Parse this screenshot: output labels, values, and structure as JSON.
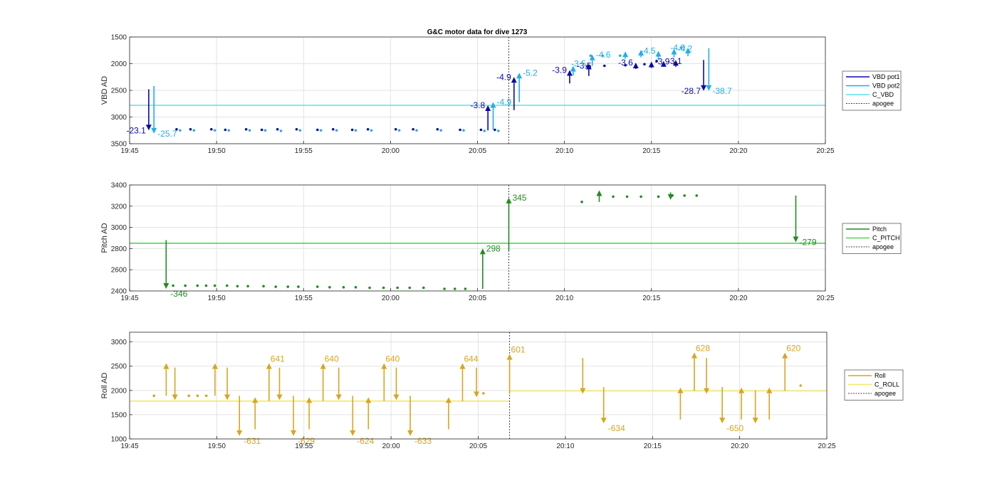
{
  "figure_title": "G&C motor data for dive 1273",
  "colors": {
    "pot1": "#0a0aa8",
    "pot2": "#22aee8",
    "c_vbd": "#5fe0e8",
    "pitch": "#228b22",
    "c_pitch": "#4fd84f",
    "roll": "#d9a520",
    "c_roll": "#f2e868",
    "apogee": "#444444"
  },
  "chart_data": [
    {
      "type": "scatter",
      "ylabel": "VBD AD",
      "xlim": [
        0,
        40
      ],
      "ylim": [
        1500,
        3500
      ],
      "y_reversed": true,
      "grid": true,
      "xticks": [
        "19:45",
        "19:50",
        "19:55",
        "20:00",
        "20:05",
        "20:10",
        "20:15",
        "20:20",
        "20:25"
      ],
      "yticks": [
        "1500",
        "2000",
        "2500",
        "3000",
        "3500"
      ],
      "apogee_x": 21.8,
      "ref_lines": [
        {
          "name": "C_VBD",
          "color_key": "c_vbd",
          "segments": [
            [
              0,
              40,
              2780
            ]
          ]
        }
      ],
      "legend": [
        {
          "name": "VBD pot1",
          "color_key": "pot1",
          "style": "solid"
        },
        {
          "name": "VBD pot2",
          "color_key": "pot2",
          "style": "solid"
        },
        {
          "name": "C_VBD",
          "color_key": "c_vbd",
          "style": "solid"
        },
        {
          "name": "apogee",
          "color_key": "apogee",
          "style": "dotted"
        }
      ],
      "legend_position": "right",
      "dot_series": [
        {
          "color_key": "pot1",
          "x": [
            2.7,
            3.5,
            4.7,
            5.5,
            6.7,
            7.6,
            8.5,
            9.6,
            10.8,
            11.7,
            12.8,
            13.7,
            15.3,
            16.3,
            17.7,
            19.0,
            20.2,
            21.0,
            26.3,
            27.3,
            28.5,
            29.6,
            30.3
          ],
          "y": [
            3230,
            3230,
            3230,
            3240,
            3230,
            3240,
            3230,
            3230,
            3240,
            3230,
            3240,
            3230,
            3230,
            3230,
            3230,
            3240,
            3240,
            3240,
            2050,
            2040,
            2030,
            2010,
            1950
          ]
        },
        {
          "color_key": "pot2",
          "x": [
            2.9,
            3.7,
            4.9,
            5.7,
            6.9,
            7.8,
            8.7,
            9.8,
            11.0,
            11.9,
            13.0,
            13.9,
            15.5,
            16.5,
            17.9,
            19.2,
            20.4,
            21.2,
            26.5,
            27.2,
            28.2,
            31.7
          ],
          "y": [
            3250,
            3250,
            3250,
            3250,
            3250,
            3250,
            3260,
            3250,
            3250,
            3250,
            3250,
            3250,
            3250,
            3250,
            3250,
            3250,
            3260,
            3260,
            1850,
            1850,
            1850,
            1700
          ]
        }
      ],
      "arrows": [
        {
          "x": 1.1,
          "from": 2480,
          "to": 3250,
          "color_key": "pot1",
          "label": "-23.1",
          "label_color_key": "pot1",
          "label_side": "left"
        },
        {
          "x": 1.4,
          "from": 2420,
          "to": 3310,
          "color_key": "pot2",
          "label": "-25.7",
          "label_color_key": "pot2",
          "label_side": "right"
        },
        {
          "x": 20.6,
          "from": 3250,
          "to": 2780,
          "color_key": "pot1",
          "label": "-3.8",
          "label_color_key": "pot1",
          "label_side": "left"
        },
        {
          "x": 20.9,
          "from": 3240,
          "to": 2720,
          "color_key": "pot2",
          "label": "-4.9",
          "label_color_key": "pot2",
          "label_side": "right"
        },
        {
          "x": 22.1,
          "from": 2870,
          "to": 2250,
          "color_key": "pot1",
          "label": "-4.9",
          "label_color_key": "pot1",
          "label_side": "left"
        },
        {
          "x": 22.4,
          "from": 2720,
          "to": 2170,
          "color_key": "pot2",
          "label": "-5.2",
          "label_color_key": "pot2",
          "label_side": "right"
        },
        {
          "x": 25.3,
          "from": 2370,
          "to": 2120,
          "color_key": "pot1",
          "label": "-3.9",
          "label_color_key": "pot1",
          "label_side": "left"
        },
        {
          "x": 25.5,
          "from": 2220,
          "to": 2040,
          "color_key": "pot2",
          "label": "-3.5",
          "label_color_key": "pot1",
          "label_side": "right"
        },
        {
          "x": 26.4,
          "from": 2230,
          "to": 2000,
          "color_key": "pot1",
          "label": "-3.5",
          "label_color_key": "pot2",
          "label_side": "left"
        },
        {
          "x": 26.6,
          "from": 2040,
          "to": 1830,
          "color_key": "pot2",
          "label": "-4.6",
          "label_color_key": "pot2",
          "label_side": "right"
        },
        {
          "x": 29.1,
          "from": 2100,
          "to": 1980,
          "color_key": "pot1",
          "label": "-3.6",
          "label_color_key": "pot1",
          "label_side": "left"
        },
        {
          "x": 30.0,
          "from": 2080,
          "to": 1960,
          "color_key": "pot1",
          "label": "-3.9",
          "label_color_key": "pot1",
          "label_side": "right"
        },
        {
          "x": 30.7,
          "from": 2060,
          "to": 1950,
          "color_key": "pot1",
          "label": "-3.1",
          "label_color_key": "pot1",
          "label_side": "right"
        },
        {
          "x": 31.4,
          "from": 2060,
          "to": 1930,
          "color_key": "pot1",
          "label": "",
          "label_color_key": "pot1",
          "label_side": "right"
        },
        {
          "x": 30.4,
          "from": 1920,
          "to": 1760,
          "color_key": "pot2",
          "label": "-4.5",
          "label_color_key": "pot2",
          "label_side": "left"
        },
        {
          "x": 31.3,
          "from": 1880,
          "to": 1720,
          "color_key": "pot2",
          "label": "-4.2",
          "label_color_key": "pot2",
          "label_side": "right"
        },
        {
          "x": 32.1,
          "from": 1860,
          "to": 1700,
          "color_key": "pot2",
          "label": "-4.0",
          "label_color_key": "pot2",
          "label_side": "left"
        },
        {
          "x": 29.4,
          "from": 1880,
          "to": 1740,
          "color_key": "pot2",
          "label": "",
          "label_color_key": "pot2",
          "label_side": "right"
        },
        {
          "x": 28.5,
          "from": 1910,
          "to": 1770,
          "color_key": "pot2",
          "label": "",
          "label_color_key": "pot2",
          "label_side": "right"
        },
        {
          "x": 33.0,
          "from": 1930,
          "to": 2510,
          "color_key": "pot1",
          "label": "-28.7",
          "label_color_key": "pot1",
          "label_side": "left"
        },
        {
          "x": 33.3,
          "from": 1710,
          "to": 2510,
          "color_key": "pot2",
          "label": "-38.7",
          "label_color_key": "pot2",
          "label_side": "right"
        }
      ]
    },
    {
      "type": "scatter",
      "ylabel": "Pitch AD",
      "xlim": [
        0,
        40
      ],
      "ylim": [
        2400,
        3400
      ],
      "y_reversed": false,
      "grid": true,
      "xticks": [
        "19:45",
        "19:50",
        "19:55",
        "20:00",
        "20:05",
        "20:10",
        "20:15",
        "20:20",
        "20:25"
      ],
      "yticks": [
        "2400",
        "2600",
        "2800",
        "3000",
        "3200",
        "3400"
      ],
      "apogee_x": 21.8,
      "ref_lines": [
        {
          "name": "C_PITCH",
          "color_key": "c_pitch",
          "segments": [
            [
              0,
              40,
              2850
            ]
          ]
        }
      ],
      "legend": [
        {
          "name": "Pitch",
          "color_key": "pitch",
          "style": "solid"
        },
        {
          "name": "C_PITCH",
          "color_key": "c_pitch",
          "style": "solid"
        },
        {
          "name": "apogee",
          "color_key": "apogee",
          "style": "dotted"
        }
      ],
      "legend_position": "right",
      "dot_series": [
        {
          "color_key": "pitch",
          "x": [
            2.5,
            3.2,
            3.9,
            4.4,
            4.9,
            5.6,
            6.2,
            6.8,
            7.7,
            8.4,
            9.1,
            9.7,
            10.8,
            11.5,
            12.3,
            13.0,
            13.8,
            14.6,
            15.4,
            16.1,
            16.9,
            18.1,
            18.7,
            19.3,
            26.0,
            27.8,
            28.6,
            29.4,
            30.4,
            31.2,
            31.9,
            32.6
          ],
          "y": [
            2450,
            2450,
            2450,
            2450,
            2450,
            2450,
            2445,
            2445,
            2445,
            2440,
            2440,
            2440,
            2440,
            2435,
            2435,
            2435,
            2430,
            2430,
            2430,
            2430,
            2430,
            2420,
            2420,
            2420,
            3240,
            3290,
            3290,
            3290,
            3290,
            3300,
            3300,
            3300
          ]
        }
      ],
      "arrows": [
        {
          "x": 2.1,
          "from": 2880,
          "to": 2420,
          "color_key": "pitch",
          "label": "-346",
          "label_color_key": "pitch",
          "label_side": "right-below"
        },
        {
          "x": 20.3,
          "from": 2420,
          "to": 2800,
          "color_key": "pitch",
          "label": "298",
          "label_color_key": "pitch",
          "label_side": "right"
        },
        {
          "x": 21.8,
          "from": 2780,
          "to": 3280,
          "color_key": "pitch",
          "label": "345",
          "label_color_key": "pitch",
          "label_side": "right"
        },
        {
          "x": 27.0,
          "from": 3240,
          "to": 3350,
          "color_key": "pitch",
          "label": "",
          "label_color_key": "pitch",
          "label_side": "right"
        },
        {
          "x": 31.1,
          "from": 3330,
          "to": 3260,
          "color_key": "pitch",
          "label": "",
          "label_color_key": "pitch",
          "label_side": "right"
        },
        {
          "x": 38.3,
          "from": 3300,
          "to": 2860,
          "color_key": "pitch",
          "label": "-279",
          "label_color_key": "pitch",
          "label_side": "right"
        }
      ]
    },
    {
      "type": "scatter",
      "ylabel": "Roll AD",
      "xlim": [
        0,
        40
      ],
      "ylim": [
        1000,
        3200
      ],
      "y_reversed": false,
      "grid": true,
      "xticks": [
        "19:45",
        "19:50",
        "19:55",
        "20:00",
        "20:05",
        "20:10",
        "20:15",
        "20:20",
        "20:25"
      ],
      "yticks": [
        "1000",
        "1500",
        "2000",
        "2500",
        "3000"
      ],
      "apogee_x": 21.8,
      "ref_lines": [
        {
          "name": "C_ROLL",
          "color_key": "c_roll",
          "segments": [
            [
              0,
              21.8,
              1780
            ],
            [
              21.8,
              40,
              1990
            ]
          ]
        }
      ],
      "legend": [
        {
          "name": "Roll",
          "color_key": "roll",
          "style": "solid"
        },
        {
          "name": "C_ROLL",
          "color_key": "c_roll",
          "style": "solid"
        },
        {
          "name": "apogee",
          "color_key": "apogee",
          "style": "dotted"
        }
      ],
      "legend_position": "right",
      "dot_series": [
        {
          "color_key": "roll",
          "x": [
            1.4,
            3.4,
            3.9,
            4.4,
            20.3,
            38.5
          ],
          "y": [
            1890,
            1890,
            1890,
            1890,
            1940,
            2100
          ]
        }
      ],
      "arrows": [
        {
          "x": 2.1,
          "from": 1890,
          "to": 2560,
          "color_key": "roll",
          "label": "",
          "label_color_key": "roll",
          "label_side": "right"
        },
        {
          "x": 2.6,
          "from": 2470,
          "to": 1800,
          "color_key": "roll",
          "label": "",
          "label_color_key": "roll",
          "label_side": "right"
        },
        {
          "x": 4.9,
          "from": 1890,
          "to": 2560,
          "color_key": "roll",
          "label": "",
          "label_color_key": "roll",
          "label_side": "right"
        },
        {
          "x": 5.6,
          "from": 2470,
          "to": 1800,
          "color_key": "roll",
          "label": "",
          "label_color_key": "roll",
          "label_side": "right"
        },
        {
          "x": 6.3,
          "from": 1890,
          "to": 1060,
          "color_key": "roll",
          "label": "-631",
          "label_color_key": "roll",
          "label_side": "right-below"
        },
        {
          "x": 7.2,
          "from": 1200,
          "to": 1860,
          "color_key": "roll",
          "label": "",
          "label_color_key": "roll",
          "label_side": "right"
        },
        {
          "x": 8.0,
          "from": 1780,
          "to": 2560,
          "color_key": "roll",
          "label": "641",
          "label_color_key": "roll",
          "label_side": "right-above"
        },
        {
          "x": 8.6,
          "from": 2470,
          "to": 1800,
          "color_key": "roll",
          "label": "",
          "label_color_key": "roll",
          "label_side": "right"
        },
        {
          "x": 9.4,
          "from": 1890,
          "to": 1060,
          "color_key": "roll",
          "label": "-629",
          "label_color_key": "roll",
          "label_side": "right-below"
        },
        {
          "x": 10.3,
          "from": 1200,
          "to": 1860,
          "color_key": "roll",
          "label": "",
          "label_color_key": "roll",
          "label_side": "right"
        },
        {
          "x": 11.1,
          "from": 1780,
          "to": 2560,
          "color_key": "roll",
          "label": "640",
          "label_color_key": "roll",
          "label_side": "right-above"
        },
        {
          "x": 12.0,
          "from": 2470,
          "to": 1800,
          "color_key": "roll",
          "label": "",
          "label_color_key": "roll",
          "label_side": "right"
        },
        {
          "x": 12.8,
          "from": 1890,
          "to": 1060,
          "color_key": "roll",
          "label": "-624",
          "label_color_key": "roll",
          "label_side": "right-below"
        },
        {
          "x": 13.7,
          "from": 1200,
          "to": 1860,
          "color_key": "roll",
          "label": "",
          "label_color_key": "roll",
          "label_side": "right"
        },
        {
          "x": 14.6,
          "from": 1780,
          "to": 2560,
          "color_key": "roll",
          "label": "640",
          "label_color_key": "roll",
          "label_side": "right-above"
        },
        {
          "x": 15.3,
          "from": 2470,
          "to": 1800,
          "color_key": "roll",
          "label": "",
          "label_color_key": "roll",
          "label_side": "right"
        },
        {
          "x": 16.1,
          "from": 1890,
          "to": 1060,
          "color_key": "roll",
          "label": "-633",
          "label_color_key": "roll",
          "label_side": "right-below"
        },
        {
          "x": 18.3,
          "from": 1200,
          "to": 1860,
          "color_key": "roll",
          "label": "",
          "label_color_key": "roll",
          "label_side": "right"
        },
        {
          "x": 19.1,
          "from": 1780,
          "to": 2560,
          "color_key": "roll",
          "label": "644",
          "label_color_key": "roll",
          "label_side": "right-above"
        },
        {
          "x": 19.9,
          "from": 2470,
          "to": 1860,
          "color_key": "roll",
          "label": "",
          "label_color_key": "roll",
          "label_side": "right"
        },
        {
          "x": 21.8,
          "from": 1930,
          "to": 2750,
          "color_key": "roll",
          "label": "601",
          "label_color_key": "roll",
          "label_side": "right-above"
        },
        {
          "x": 26.0,
          "from": 2670,
          "to": 1930,
          "color_key": "roll",
          "label": "",
          "label_color_key": "roll",
          "label_side": "right"
        },
        {
          "x": 27.2,
          "from": 2070,
          "to": 1320,
          "color_key": "roll",
          "label": "-634",
          "label_color_key": "roll",
          "label_side": "right-below"
        },
        {
          "x": 31.6,
          "from": 1400,
          "to": 2060,
          "color_key": "roll",
          "label": "",
          "label_color_key": "roll",
          "label_side": "right"
        },
        {
          "x": 32.4,
          "from": 1990,
          "to": 2780,
          "color_key": "roll",
          "label": "628",
          "label_color_key": "roll",
          "label_side": "right-above"
        },
        {
          "x": 33.1,
          "from": 2670,
          "to": 1930,
          "color_key": "roll",
          "label": "",
          "label_color_key": "roll",
          "label_side": "right"
        },
        {
          "x": 34.0,
          "from": 2070,
          "to": 1320,
          "color_key": "roll",
          "label": "-650",
          "label_color_key": "roll",
          "label_side": "right-below"
        },
        {
          "x": 35.1,
          "from": 1400,
          "to": 2060,
          "color_key": "roll",
          "label": "",
          "label_color_key": "roll",
          "label_side": "right"
        },
        {
          "x": 35.9,
          "from": 2000,
          "to": 1320,
          "color_key": "roll",
          "label": "",
          "label_color_key": "roll",
          "label_side": "right"
        },
        {
          "x": 36.7,
          "from": 1400,
          "to": 2060,
          "color_key": "roll",
          "label": "",
          "label_color_key": "roll",
          "label_side": "right"
        },
        {
          "x": 37.6,
          "from": 1990,
          "to": 2780,
          "color_key": "roll",
          "label": "620",
          "label_color_key": "roll",
          "label_side": "right-above"
        }
      ]
    }
  ]
}
